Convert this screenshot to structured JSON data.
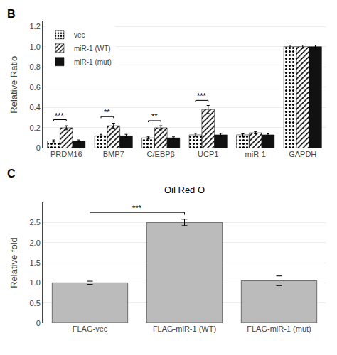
{
  "chart_data": [
    {
      "type": "bar",
      "categories": [
        "PRDM16",
        "BMP7",
        "C/EBPβ",
        "UCP1",
        "miR-1",
        "GAPDH"
      ],
      "series": [
        {
          "name": "vec",
          "color": "#c8c8c8",
          "values": [
            0.07,
            0.12,
            0.1,
            0.13,
            0.13,
            1.0
          ],
          "errors": [
            0.01,
            0.015,
            0.01,
            0.015,
            0.01,
            0.015
          ]
        },
        {
          "name": "miR-1 (WT)",
          "color": "#888888",
          "values": [
            0.2,
            0.22,
            0.2,
            0.38,
            0.15,
            1.0
          ],
          "errors": [
            0.02,
            0.025,
            0.02,
            0.04,
            0.01,
            0.015
          ]
        },
        {
          "name": "miR-1 (mut)",
          "color": "#111111",
          "values": [
            0.07,
            0.12,
            0.1,
            0.13,
            0.13,
            1.0
          ],
          "errors": [
            0.01,
            0.015,
            0.01,
            0.015,
            0.01,
            0.015
          ]
        }
      ],
      "ylabel": "Relative Ratio",
      "ylim": [
        0,
        1.25
      ],
      "yticks": [
        0,
        0.2,
        0.4,
        0.6,
        0.8,
        {
          "value": 1.0,
          "label": "1.0"
        },
        1.2
      ],
      "legend": "upper left",
      "annotations": [
        {
          "text": "B"
        },
        {
          "text": "***",
          "category": "PRDM16",
          "y": 0.28
        },
        {
          "text": "**",
          "category": "BMP7",
          "y": 0.31
        },
        {
          "text": "**",
          "category": "C/EBPβ",
          "y": 0.27
        },
        {
          "text": "***",
          "category": "UCP1",
          "y": 0.47
        }
      ]
    },
    {
      "type": "bar",
      "title": "Oil Red O",
      "categories": [
        "FLAG-vec",
        "FLAG-miR-1 (WT)",
        "FLAG-miR-1 (mut)"
      ],
      "values": [
        1.0,
        2.5,
        1.05
      ],
      "errors": [
        0.04,
        0.08,
        0.12
      ],
      "color": "#bbbbbb",
      "ylabel": "Relative fold",
      "ylim": [
        0,
        3.0
      ],
      "yticks": [
        0,
        0.5,
        {
          "value": 1.0,
          "label": "1.0"
        },
        1.5,
        {
          "value": 2.0,
          "label": "2.0"
        },
        2.5
      ],
      "annotations": [
        {
          "text": "C"
        },
        {
          "text": "***",
          "from": "FLAG-vec",
          "to": "FLAG-miR-1 (WT)",
          "y": 2.75
        }
      ]
    }
  ]
}
